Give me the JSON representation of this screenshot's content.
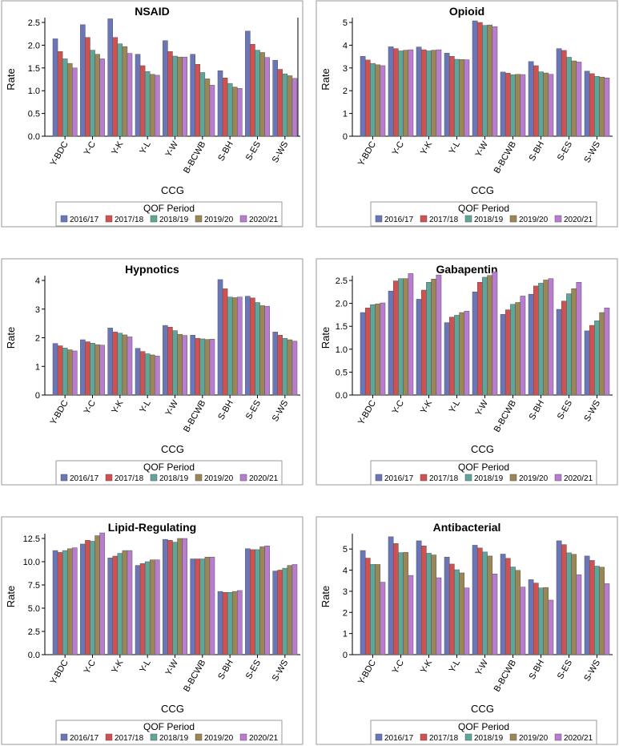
{
  "chart_data": [
    {
      "type": "bar",
      "title": "NSAID",
      "xlabel": "CCG",
      "ylabel": "Rate",
      "ylim": [
        0,
        2.5
      ],
      "yticks": [
        "0.0",
        "0.5",
        "1.0",
        "1.5",
        "2.0",
        "2.5"
      ],
      "categories": [
        "Y-BDC",
        "Y-C",
        "Y-K",
        "Y-L",
        "Y-W",
        "B-BCWB",
        "S-BH",
        "S-ES",
        "S-WS"
      ],
      "legend_title": "QOF Period",
      "series": [
        {
          "name": "2016/17",
          "values": [
            2.14,
            2.45,
            2.58,
            1.8,
            2.1,
            1.8,
            1.44,
            2.31,
            1.67
          ]
        },
        {
          "name": "2017/18",
          "values": [
            1.86,
            2.17,
            2.17,
            1.55,
            1.86,
            1.58,
            1.28,
            2.02,
            1.47
          ]
        },
        {
          "name": "2018/19",
          "values": [
            1.7,
            1.89,
            2.03,
            1.42,
            1.76,
            1.4,
            1.16,
            1.89,
            1.37
          ]
        },
        {
          "name": "2019/20",
          "values": [
            1.6,
            1.8,
            1.97,
            1.36,
            1.74,
            1.26,
            1.08,
            1.84,
            1.33
          ]
        },
        {
          "name": "2020/21",
          "values": [
            1.5,
            1.7,
            1.82,
            1.34,
            1.74,
            1.12,
            1.05,
            1.73,
            1.27
          ]
        }
      ]
    },
    {
      "type": "bar",
      "title": "Opioid",
      "xlabel": "CCG",
      "ylabel": "Rate",
      "ylim": [
        0,
        5
      ],
      "yticks": [
        "0",
        "1",
        "2",
        "3",
        "4",
        "5"
      ],
      "categories": [
        "Y-BDC",
        "Y-C",
        "Y-K",
        "Y-L",
        "Y-W",
        "B-BCWB",
        "S-BH",
        "S-ES",
        "S-WS"
      ],
      "legend_title": "QOF Period",
      "series": [
        {
          "name": "2016/17",
          "values": [
            3.51,
            3.93,
            3.92,
            3.65,
            5.07,
            2.82,
            3.28,
            3.85,
            2.86
          ]
        },
        {
          "name": "2017/18",
          "values": [
            3.35,
            3.85,
            3.8,
            3.51,
            5.0,
            2.77,
            3.1,
            3.77,
            2.75
          ]
        },
        {
          "name": "2018/19",
          "values": [
            3.2,
            3.75,
            3.75,
            3.38,
            4.87,
            2.7,
            2.83,
            3.47,
            2.63
          ]
        },
        {
          "name": "2019/20",
          "values": [
            3.14,
            3.78,
            3.78,
            3.37,
            4.89,
            2.72,
            2.78,
            3.31,
            2.6
          ]
        },
        {
          "name": "2020/21",
          "values": [
            3.1,
            3.8,
            3.8,
            3.36,
            4.81,
            2.71,
            2.72,
            3.26,
            2.56
          ]
        }
      ]
    },
    {
      "type": "bar",
      "title": "Hypnotics",
      "xlabel": "CCG",
      "ylabel": "Rate",
      "ylim": [
        0,
        4
      ],
      "yticks": [
        "0",
        "1",
        "2",
        "3",
        "4"
      ],
      "categories": [
        "Y-BDC",
        "Y-C",
        "Y-K",
        "Y-L",
        "Y-W",
        "B-BCWB",
        "S-BH",
        "S-ES",
        "S-WS"
      ],
      "legend_title": "QOF Period",
      "series": [
        {
          "name": "2016/17",
          "values": [
            1.8,
            1.93,
            2.34,
            1.63,
            2.43,
            2.09,
            4.03,
            3.45,
            2.2
          ]
        },
        {
          "name": "2017/18",
          "values": [
            1.72,
            1.86,
            2.2,
            1.52,
            2.37,
            1.98,
            3.71,
            3.39,
            2.09
          ]
        },
        {
          "name": "2018/19",
          "values": [
            1.64,
            1.81,
            2.16,
            1.44,
            2.25,
            1.96,
            3.42,
            3.23,
            1.98
          ]
        },
        {
          "name": "2019/20",
          "values": [
            1.58,
            1.76,
            2.1,
            1.4,
            2.12,
            1.94,
            3.4,
            3.12,
            1.93
          ]
        },
        {
          "name": "2020/21",
          "values": [
            1.54,
            1.74,
            2.03,
            1.36,
            2.08,
            1.95,
            3.42,
            3.1,
            1.88
          ]
        }
      ]
    },
    {
      "type": "bar",
      "title": "Gabapentin",
      "xlabel": "CCG",
      "ylabel": "Rate",
      "ylim": [
        0,
        2.5
      ],
      "yticks": [
        "0.0",
        "0.5",
        "1.0",
        "1.5",
        "2.0",
        "2.5"
      ],
      "categories": [
        "Y-BDC",
        "Y-C",
        "Y-K",
        "Y-L",
        "Y-W",
        "B-BCWB",
        "S-BH",
        "S-ES",
        "S-WS"
      ],
      "legend_title": "QOF Period",
      "series": [
        {
          "name": "2016/17",
          "values": [
            1.8,
            2.27,
            2.09,
            1.58,
            2.25,
            1.76,
            2.2,
            1.87,
            1.4
          ]
        },
        {
          "name": "2017/18",
          "values": [
            1.9,
            2.49,
            2.29,
            1.7,
            2.46,
            1.86,
            2.38,
            2.05,
            1.52
          ]
        },
        {
          "name": "2018/19",
          "values": [
            1.97,
            2.54,
            2.46,
            1.74,
            2.57,
            1.98,
            2.44,
            2.21,
            1.62
          ]
        },
        {
          "name": "2019/20",
          "values": [
            1.99,
            2.54,
            2.53,
            1.8,
            2.61,
            2.02,
            2.51,
            2.32,
            1.8
          ]
        },
        {
          "name": "2020/21",
          "values": [
            2.01,
            2.65,
            2.62,
            1.83,
            2.69,
            2.16,
            2.54,
            2.46,
            1.9
          ]
        }
      ]
    },
    {
      "type": "bar",
      "title": "Lipid-Regulating",
      "xlabel": "CCG",
      "ylabel": "Rate",
      "ylim": [
        0,
        12.5
      ],
      "yticks": [
        "0.0",
        "2.5",
        "5.0",
        "7.5",
        "10.0",
        "12.5"
      ],
      "categories": [
        "Y-BDC",
        "Y-C",
        "Y-K",
        "Y-L",
        "Y-W",
        "B-BCWB",
        "S-BH",
        "S-ES",
        "S-WS"
      ],
      "legend_title": "QOF Period",
      "series": [
        {
          "name": "2016/17",
          "values": [
            11.2,
            11.9,
            10.4,
            9.6,
            12.4,
            10.3,
            6.8,
            11.4,
            9.0
          ]
        },
        {
          "name": "2017/18",
          "values": [
            11.0,
            12.3,
            10.6,
            9.8,
            12.3,
            10.3,
            6.7,
            11.3,
            9.1
          ]
        },
        {
          "name": "2018/19",
          "values": [
            11.2,
            12.2,
            10.9,
            10.0,
            12.1,
            10.3,
            6.7,
            11.3,
            9.3
          ]
        },
        {
          "name": "2019/20",
          "values": [
            11.4,
            12.8,
            11.2,
            10.2,
            12.5,
            10.5,
            6.8,
            11.6,
            9.6
          ]
        },
        {
          "name": "2020/21",
          "values": [
            11.5,
            13.1,
            11.2,
            10.2,
            12.5,
            10.5,
            6.9,
            11.7,
            9.7
          ]
        }
      ]
    },
    {
      "type": "bar",
      "title": "Antibacterial",
      "xlabel": "CCG",
      "ylabel": "Rate",
      "ylim": [
        0,
        5.5
      ],
      "yticks": [
        "0",
        "1",
        "2",
        "3",
        "4",
        "5"
      ],
      "categories": [
        "Y-BDC",
        "Y-C",
        "Y-K",
        "Y-L",
        "Y-W",
        "B-BCWB",
        "S-BH",
        "S-ES",
        "S-WS"
      ],
      "legend_title": "QOF Period",
      "series": [
        {
          "name": "2016/17",
          "values": [
            4.93,
            5.58,
            5.39,
            4.62,
            5.18,
            4.76,
            3.55,
            5.39,
            4.67
          ]
        },
        {
          "name": "2017/18",
          "values": [
            4.57,
            5.26,
            5.15,
            4.29,
            5.05,
            4.56,
            3.39,
            5.21,
            4.46
          ]
        },
        {
          "name": "2018/19",
          "values": [
            4.27,
            4.83,
            4.8,
            4.02,
            4.86,
            4.15,
            3.16,
            4.82,
            4.19
          ]
        },
        {
          "name": "2019/20",
          "values": [
            4.27,
            4.84,
            4.72,
            3.87,
            4.67,
            3.99,
            3.18,
            4.75,
            4.14
          ]
        },
        {
          "name": "2020/21",
          "values": [
            3.43,
            3.75,
            3.64,
            3.16,
            3.82,
            3.2,
            2.58,
            3.78,
            3.36
          ]
        }
      ]
    }
  ],
  "colors": {
    "2016/17": "#6a76b8",
    "2017/18": "#d0514f",
    "2018/19": "#5ea69a",
    "2019/20": "#9b8756",
    "2020/21": "#b97cd0"
  }
}
